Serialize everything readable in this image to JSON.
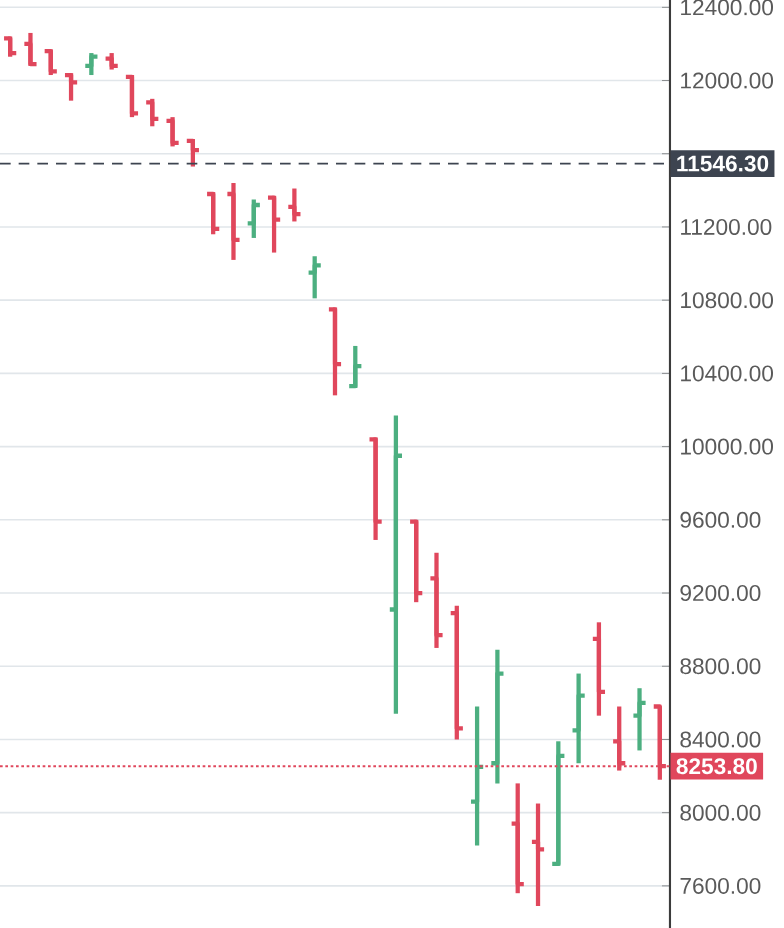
{
  "chart_data": {
    "type": "candlestick",
    "categories": [
      null,
      null,
      null,
      null,
      null,
      null,
      null,
      null,
      null,
      null,
      null,
      null,
      null,
      null,
      null,
      null,
      null,
      null,
      null,
      null,
      null,
      null,
      null,
      null,
      null,
      null,
      null,
      null,
      null,
      null,
      null,
      null,
      null
    ],
    "ohlc": [
      [
        12230,
        12240,
        12130,
        12150
      ],
      [
        12200,
        12260,
        12080,
        12090
      ],
      [
        12160,
        12170,
        12030,
        12050
      ],
      [
        12030,
        12040,
        11890,
        11990
      ],
      [
        12080,
        12150,
        12030,
        12130
      ],
      [
        12120,
        12150,
        12060,
        12080
      ],
      [
        12020,
        12030,
        11800,
        11820
      ],
      [
        11880,
        11900,
        11750,
        11790
      ],
      [
        11780,
        11800,
        11640,
        11660
      ],
      [
        11670,
        11680,
        11530,
        11620
      ],
      [
        11380,
        11390,
        11160,
        11190
      ],
      [
        11380,
        11440,
        11020,
        11130
      ],
      [
        11220,
        11350,
        11140,
        11320
      ],
      [
        11360,
        11370,
        11060,
        11240
      ],
      [
        11310,
        11410,
        11230,
        11270
      ],
      [
        10950,
        11040,
        10810,
        10990
      ],
      [
        10750,
        10760,
        10280,
        10450
      ],
      [
        10330,
        10550,
        10320,
        10440
      ],
      [
        10040,
        10050,
        9490,
        9590
      ],
      [
        9110,
        10170,
        8540,
        9950
      ],
      [
        9590,
        9600,
        9150,
        9200
      ],
      [
        9280,
        9420,
        8900,
        8970
      ],
      [
        9090,
        9130,
        8400,
        8460
      ],
      [
        8060,
        8580,
        7820,
        8250
      ],
      [
        8270,
        8890,
        8160,
        8760
      ],
      [
        7940,
        8160,
        7560,
        7610
      ],
      [
        7840,
        8050,
        7490,
        7800
      ],
      [
        7720,
        8390,
        7710,
        8310
      ],
      [
        8450,
        8760,
        8270,
        8640
      ],
      [
        8950,
        9040,
        8530,
        8660
      ],
      [
        8390,
        8580,
        8230,
        8270
      ],
      [
        8530,
        8680,
        8340,
        8600
      ],
      [
        8580,
        8580,
        8180,
        8253.8
      ]
    ],
    "colors": [
      "#e0475c",
      "#e0475c",
      "#e0475c",
      "#e0475c",
      "#4caf80",
      "#e0475c",
      "#e0475c",
      "#e0475c",
      "#e0475c",
      "#e0475c",
      "#e0475c",
      "#e0475c",
      "#4caf80",
      "#e0475c",
      "#e0475c",
      "#4caf80",
      "#e0475c",
      "#4caf80",
      "#e0475c",
      "#4caf80",
      "#e0475c",
      "#e0475c",
      "#e0475c",
      "#4caf80",
      "#4caf80",
      "#e0475c",
      "#e0475c",
      "#4caf80",
      "#4caf80",
      "#e0475c",
      "#e0475c",
      "#4caf80",
      "#e0475c"
    ],
    "ylim": [
      7370,
      12440
    ],
    "yticks": [
      {
        "value": 7600,
        "label": "7600.00"
      },
      {
        "value": 8000,
        "label": "8000.00"
      },
      {
        "value": 8400,
        "label": "8400.00"
      },
      {
        "value": 8800,
        "label": "8800.00"
      },
      {
        "value": 9200,
        "label": "9200.00"
      },
      {
        "value": 9600,
        "label": "9600.00"
      },
      {
        "value": 10000,
        "label": "10000.00"
      },
      {
        "value": 10400,
        "label": "10400.00"
      },
      {
        "value": 10800,
        "label": "10800.00"
      },
      {
        "value": 11200,
        "label": "11200.00"
      },
      {
        "value": 11600,
        "label": null
      },
      {
        "value": 12000,
        "label": "12000.00"
      },
      {
        "value": 12400,
        "label": "12400.00"
      }
    ],
    "grid": "y",
    "ref_lines": [
      {
        "axis": "y",
        "value": 11546.3,
        "label": "11546.30",
        "color": "#3d4450",
        "line_style": "dashed"
      },
      {
        "axis": "y",
        "value": 8253.8,
        "label": "8253.80",
        "color": "#e0475c",
        "line_style": "dotted"
      }
    ]
  }
}
